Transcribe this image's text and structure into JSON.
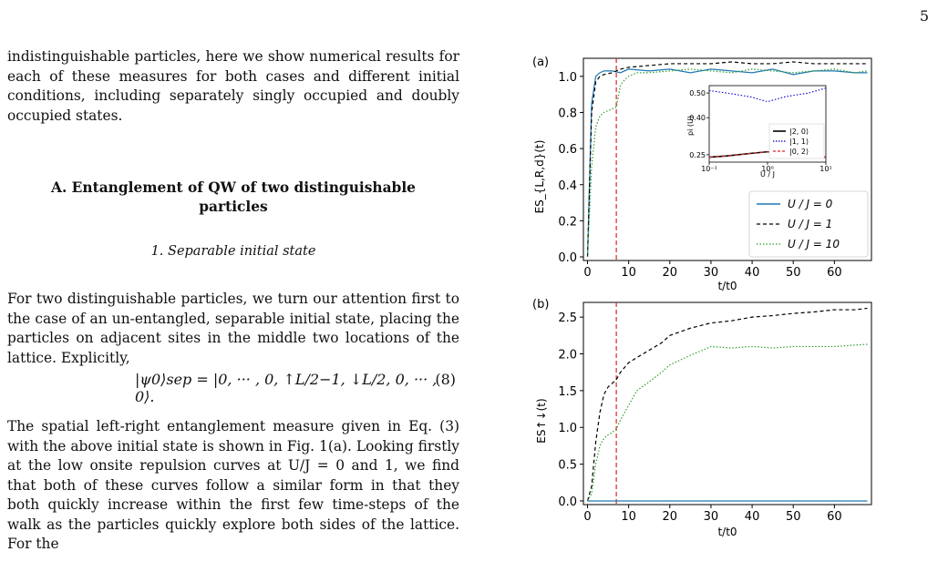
{
  "page_number": "5",
  "text": {
    "para1": "indistinguishable particles, here we show numerical results for each of these measures for both cases and different initial conditions, including separately singly occupied and doubly occupied states.",
    "section_title_line1": "A.   Entanglement of QW of two distinguishable",
    "section_title_line2": "particles",
    "subsection": "1.   Separable initial state",
    "para2": "For two distinguishable particles, we turn our attention first to the case of an un-entangled, separable initial state, placing the particles on adjacent sites in the middle two locations of the lattice. Explicitly,",
    "equation": "|ψ0⟩sep = |0, ··· , 0, ↑L/2−1, ↓L/2, 0, ··· , 0⟩.",
    "equation_number": "(8)",
    "para3": "The spatial left-right entanglement measure given in Eq. (3) with the above initial state is shown in Fig. 1(a). Looking firstly at the low onsite repulsion curves at U/J = 0 and 1, we find that both of these curves follow a similar form in that they both quickly increase within the first few time-steps of the walk as the particles quickly explore both sides of the lattice. For the"
  },
  "figure_a": {
    "panel_label": "(a)",
    "ylabel": "ES_{L,R,d}(t)",
    "xlabel": "t/t0",
    "xticks": [
      "0",
      "10",
      "20",
      "30",
      "40",
      "50",
      "60"
    ],
    "yticks": [
      "0.0",
      "0.2",
      "0.4",
      "0.6",
      "0.8",
      "1.0"
    ],
    "legend": [
      "U / J = 0",
      "U / J = 1",
      "U / J = 10"
    ],
    "inset": {
      "ylabel": "pi (U)",
      "xlabel": "U / J",
      "yticks": [
        "0.25",
        "0.40",
        "0.50"
      ],
      "xticks": [
        "10⁻¹",
        "10⁰",
        "10¹"
      ],
      "legend": [
        "|2, 0⟩",
        "|1, 1⟩",
        "|0, 2⟩"
      ]
    }
  },
  "figure_b": {
    "panel_label": "(b)",
    "ylabel": "ES↑↓(t)",
    "xlabel": "t/t0",
    "xticks": [
      "0",
      "10",
      "20",
      "30",
      "40",
      "50",
      "60"
    ],
    "yticks": [
      "0.0",
      "0.5",
      "1.0",
      "1.5",
      "2.0",
      "2.5"
    ]
  },
  "chart_data": [
    {
      "type": "line",
      "title": "",
      "xlabel": "t/t0",
      "ylabel": "ES L,R,d (t)",
      "xlim": [
        -1,
        69
      ],
      "ylim": [
        -0.02,
        1.1
      ],
      "vline_x": 7,
      "series": [
        {
          "name": "U / J = 0",
          "color": "#1f77b4",
          "style": "solid",
          "x": [
            0,
            1,
            2,
            3,
            4,
            6,
            8,
            10,
            15,
            20,
            25,
            30,
            35,
            40,
            45,
            50,
            55,
            60,
            65,
            68
          ],
          "y": [
            0,
            0.85,
            1.0,
            1.02,
            1.03,
            1.03,
            1.02,
            1.04,
            1.03,
            1.04,
            1.02,
            1.04,
            1.03,
            1.02,
            1.04,
            1.01,
            1.03,
            1.03,
            1.02,
            1.02
          ]
        },
        {
          "name": "U / J = 1",
          "color": "#000000",
          "style": "dashed",
          "x": [
            0,
            1,
            2,
            3,
            4,
            6,
            8,
            10,
            15,
            20,
            25,
            30,
            35,
            40,
            45,
            50,
            55,
            60,
            65,
            68
          ],
          "y": [
            0,
            0.8,
            0.97,
            1.0,
            1.01,
            1.02,
            1.04,
            1.05,
            1.06,
            1.07,
            1.07,
            1.07,
            1.08,
            1.07,
            1.07,
            1.08,
            1.07,
            1.07,
            1.07,
            1.07
          ]
        },
        {
          "name": "U / J = 10",
          "color": "#2ca02c",
          "style": "dotted",
          "x": [
            0,
            1,
            2,
            3,
            4,
            5,
            6,
            7,
            8,
            9,
            10,
            12,
            15,
            20,
            25,
            30,
            35,
            40,
            45,
            50,
            55,
            60,
            65,
            68
          ],
          "y": [
            0,
            0.5,
            0.72,
            0.78,
            0.8,
            0.81,
            0.82,
            0.83,
            0.95,
            0.98,
            1.0,
            1.02,
            1.02,
            1.03,
            1.04,
            1.03,
            1.02,
            1.04,
            1.03,
            1.02,
            1.03,
            1.04,
            1.02,
            1.03
          ]
        }
      ],
      "inset": {
        "type": "line",
        "xlabel": "U / J",
        "ylabel": "pi (U)",
        "xscale": "log",
        "xlim": [
          0.1,
          10
        ],
        "ylim": [
          0.22,
          0.53
        ],
        "series": [
          {
            "name": "|2, 0⟩",
            "color": "#000000",
            "style": "solid",
            "x": [
              0.1,
              0.2,
              0.5,
              1,
              2,
              5,
              10
            ],
            "y": [
              0.24,
              0.245,
              0.255,
              0.262,
              0.255,
              0.245,
              0.24
            ]
          },
          {
            "name": "|1, 1⟩",
            "color": "#0000cc",
            "style": "dotted",
            "x": [
              0.1,
              0.2,
              0.5,
              1,
              2,
              5,
              10
            ],
            "y": [
              0.51,
              0.5,
              0.485,
              0.465,
              0.485,
              0.5,
              0.52
            ]
          },
          {
            "name": "|0, 2⟩",
            "color": "#d62728",
            "style": "dashed",
            "x": [
              0.1,
              0.2,
              0.5,
              1,
              2,
              5,
              10
            ],
            "y": [
              0.24,
              0.245,
              0.255,
              0.262,
              0.255,
              0.245,
              0.24
            ]
          }
        ]
      }
    },
    {
      "type": "line",
      "title": "",
      "xlabel": "t/t0",
      "ylabel": "ES↑↓ (t)",
      "xlim": [
        -1,
        69
      ],
      "ylim": [
        -0.05,
        2.7
      ],
      "vline_x": 7,
      "series": [
        {
          "name": "",
          "color": "#1f77b4",
          "style": "solid",
          "x": [
            0,
            68
          ],
          "y": [
            0.0,
            0.0
          ]
        },
        {
          "name": "",
          "color": "#000000",
          "style": "dashed",
          "x": [
            0,
            1,
            2,
            3,
            4,
            5,
            6,
            7,
            8,
            10,
            12,
            15,
            18,
            20,
            25,
            30,
            35,
            40,
            45,
            50,
            55,
            60,
            65,
            68
          ],
          "y": [
            0,
            0.2,
            0.8,
            1.2,
            1.45,
            1.55,
            1.6,
            1.65,
            1.75,
            1.88,
            1.95,
            2.05,
            2.15,
            2.25,
            2.35,
            2.42,
            2.45,
            2.5,
            2.52,
            2.55,
            2.57,
            2.6,
            2.6,
            2.62
          ]
        },
        {
          "name": "",
          "color": "#2ca02c",
          "style": "dotted",
          "x": [
            0,
            1,
            2,
            3,
            4,
            5,
            6,
            7,
            8,
            10,
            12,
            15,
            18,
            20,
            25,
            28,
            30,
            35,
            40,
            45,
            50,
            55,
            60,
            65,
            68
          ],
          "y": [
            0,
            0.1,
            0.5,
            0.75,
            0.85,
            0.9,
            0.93,
            0.98,
            1.1,
            1.3,
            1.5,
            1.62,
            1.75,
            1.85,
            1.98,
            2.05,
            2.1,
            2.08,
            2.1,
            2.08,
            2.1,
            2.1,
            2.1,
            2.12,
            2.13
          ]
        }
      ]
    }
  ]
}
